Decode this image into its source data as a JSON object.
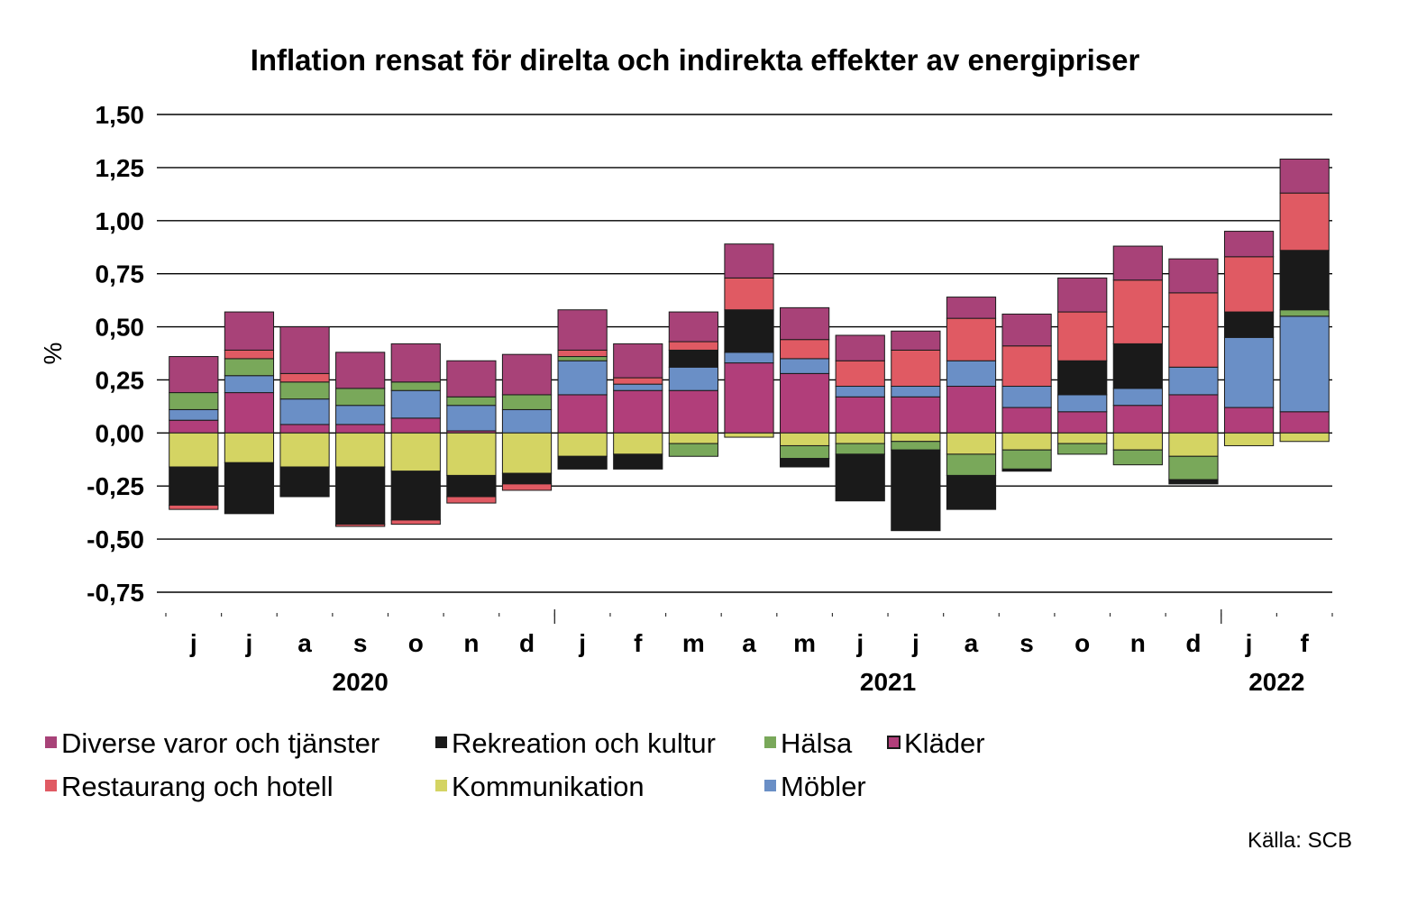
{
  "chart_data": {
    "type": "bar",
    "stacked": true,
    "title": "Inflation rensat för direlta och indirekta effekter av energipriser",
    "ylabel": "%",
    "ylim": [
      -0.75,
      1.5
    ],
    "yticks": [
      1.5,
      1.25,
      1.0,
      0.75,
      0.5,
      0.25,
      0.0,
      -0.25,
      -0.5,
      -0.75
    ],
    "ytick_labels": [
      "1,50",
      "1,25",
      "1,00",
      "0,75",
      "0,50",
      "0,25",
      "0,00",
      "-0,25",
      "-0,50",
      "-0,75"
    ],
    "grid": "horizontal",
    "categories": [
      "j",
      "j",
      "a",
      "s",
      "o",
      "n",
      "d",
      "j",
      "f",
      "m",
      "a",
      "m",
      "j",
      "j",
      "a",
      "s",
      "o",
      "n",
      "d",
      "j",
      "f"
    ],
    "year_labels": [
      {
        "label": "2020",
        "from_index": 0,
        "to_index": 6
      },
      {
        "label": "2021",
        "from_index": 7,
        "to_index": 18
      },
      {
        "label": "2022",
        "from_index": 19,
        "to_index": 20
      }
    ],
    "series": [
      {
        "name": "Kläder",
        "color": "#b13e7a",
        "values": [
          0.06,
          0.19,
          0.04,
          0.04,
          0.07,
          0.01,
          0.0,
          0.18,
          0.2,
          0.2,
          0.33,
          0.28,
          0.17,
          0.17,
          0.22,
          0.12,
          0.1,
          0.13,
          0.18,
          0.12,
          0.1
        ]
      },
      {
        "name": "Möbler",
        "color": "#6a8fc6",
        "values": [
          0.05,
          0.08,
          0.12,
          0.09,
          0.13,
          0.12,
          0.11,
          0.16,
          0.03,
          0.11,
          0.05,
          0.07,
          0.05,
          0.05,
          0.12,
          0.1,
          0.08,
          0.08,
          0.13,
          0.33,
          0.45
        ]
      },
      {
        "name": "Hälsa",
        "color": "#79a85a",
        "values": [
          0.08,
          0.08,
          0.08,
          0.08,
          0.04,
          0.04,
          0.07,
          0.02,
          0.0,
          0.0,
          0.0,
          0.0,
          0.0,
          0.0,
          0.0,
          0.0,
          0.0,
          0.0,
          0.0,
          0.0,
          0.03
        ]
      },
      {
        "name": "Rekreation och kultur",
        "color": "#1a1a1a",
        "values": [
          0.0,
          0.0,
          0.0,
          0.0,
          0.0,
          0.0,
          0.0,
          0.0,
          0.0,
          0.08,
          0.2,
          0.0,
          0.0,
          0.0,
          0.0,
          0.0,
          0.16,
          0.21,
          0.0,
          0.12,
          0.28
        ]
      },
      {
        "name": "Restaurang och hotell",
        "color": "#e05a63",
        "values": [
          0.0,
          0.04,
          0.04,
          0.0,
          0.0,
          0.0,
          0.0,
          0.03,
          0.03,
          0.04,
          0.15,
          0.09,
          0.12,
          0.17,
          0.2,
          0.19,
          0.23,
          0.3,
          0.35,
          0.26,
          0.27
        ]
      },
      {
        "name": "Diverse varor och tjänster",
        "color": "#a84278",
        "values": [
          0.17,
          0.18,
          0.22,
          0.17,
          0.18,
          0.17,
          0.19,
          0.19,
          0.16,
          0.14,
          0.16,
          0.15,
          0.12,
          0.09,
          0.1,
          0.15,
          0.16,
          0.16,
          0.16,
          0.12,
          0.16
        ]
      },
      {
        "name": "Kommunikation",
        "color": "#d4d463",
        "values": [
          -0.16,
          -0.14,
          -0.16,
          -0.16,
          -0.18,
          -0.2,
          -0.19,
          -0.11,
          -0.1,
          -0.05,
          -0.02,
          -0.06,
          -0.05,
          -0.04,
          -0.1,
          -0.08,
          -0.05,
          -0.08,
          -0.11,
          -0.06,
          -0.04
        ]
      },
      {
        "name": "Hälsa (neg)",
        "color": "#79a85a",
        "legend": false,
        "values": [
          0.0,
          0.0,
          0.0,
          0.0,
          0.0,
          0.0,
          0.0,
          0.0,
          0.0,
          -0.06,
          0.0,
          -0.06,
          -0.05,
          -0.04,
          -0.1,
          -0.09,
          -0.05,
          -0.07,
          -0.11,
          0.0,
          0.0
        ]
      },
      {
        "name": "Rekreation och kultur (neg)",
        "color": "#1a1a1a",
        "legend": false,
        "values": [
          -0.18,
          -0.24,
          -0.14,
          -0.27,
          -0.23,
          -0.1,
          -0.05,
          -0.06,
          -0.07,
          0.0,
          0.0,
          -0.04,
          -0.22,
          -0.38,
          -0.16,
          -0.01,
          0.0,
          0.0,
          -0.02,
          0.0,
          0.0
        ]
      },
      {
        "name": "Restaurang och hotell (neg)",
        "color": "#e05a63",
        "legend": false,
        "values": [
          -0.02,
          0.0,
          0.0,
          -0.01,
          -0.02,
          -0.03,
          -0.03,
          0.0,
          0.0,
          0.0,
          0.0,
          0.0,
          0.0,
          0.0,
          0.0,
          0.0,
          0.0,
          0.0,
          0.0,
          0.0,
          0.0
        ]
      }
    ],
    "legend": {
      "placement": "bottom",
      "rows": [
        [
          {
            "label": "Diverse varor och tjänster",
            "color": "#a84278",
            "outlined": false
          },
          {
            "label": "Rekreation och kultur",
            "color": "#1a1a1a",
            "outlined": false
          },
          {
            "label": "Hälsa",
            "color": "#79a85a",
            "outlined": false
          },
          {
            "label": "Kläder",
            "color": "#b13e7a",
            "outlined": true
          }
        ],
        [
          {
            "label": "Restaurang och hotell",
            "color": "#e05a63",
            "outlined": false
          },
          {
            "label": "Kommunikation",
            "color": "#d4d463",
            "outlined": false
          },
          {
            "label": "Möbler",
            "color": "#6a8fc6",
            "outlined": false
          }
        ]
      ]
    },
    "source": "Källa: SCB"
  }
}
